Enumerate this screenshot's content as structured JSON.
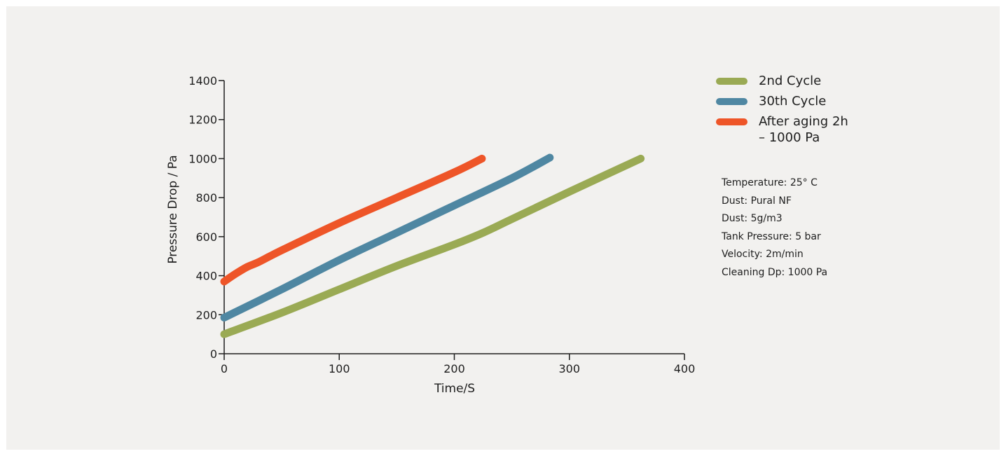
{
  "chart_data": {
    "type": "line",
    "title": "",
    "xlabel": "Time/S",
    "ylabel": "Pressure Drop / Pa",
    "xlim": [
      0,
      400
    ],
    "ylim": [
      0,
      1400
    ],
    "x_ticks": [
      "0",
      "100",
      "200",
      "300",
      "400"
    ],
    "y_ticks": [
      "0",
      "200",
      "400",
      "600",
      "800",
      "1000",
      "1200",
      "1400"
    ],
    "grid": false,
    "legend_position": "right",
    "series": [
      {
        "name": "2nd Cycle",
        "color": "#9aaa54",
        "points": [
          [
            0,
            100
          ],
          [
            50,
            210
          ],
          [
            100,
            330
          ],
          [
            150,
            450
          ],
          [
            200,
            560
          ],
          [
            225,
            620
          ],
          [
            250,
            690
          ],
          [
            300,
            830
          ],
          [
            362,
            1000
          ]
        ]
      },
      {
        "name": "30th Cycle",
        "color": "#4f87a2",
        "points": [
          [
            0,
            185
          ],
          [
            50,
            330
          ],
          [
            100,
            480
          ],
          [
            150,
            620
          ],
          [
            200,
            760
          ],
          [
            250,
            900
          ],
          [
            283,
            1005
          ]
        ]
      },
      {
        "name": "After aging 2h\n– 1000 Pa",
        "color": "#ee5528",
        "points": [
          [
            0,
            370
          ],
          [
            10,
            410
          ],
          [
            20,
            445
          ],
          [
            30,
            470
          ],
          [
            50,
            530
          ],
          [
            100,
            670
          ],
          [
            150,
            800
          ],
          [
            200,
            930
          ],
          [
            224,
            1000
          ]
        ]
      }
    ],
    "annotations": [
      "Temperature: 25° C",
      "Dust: Pural NF",
      "Dust: 5g/m3",
      "Tank Pressure: 5 bar",
      "Velocity: 2m/min",
      "Cleaning Dp: 1000 Pa"
    ]
  }
}
